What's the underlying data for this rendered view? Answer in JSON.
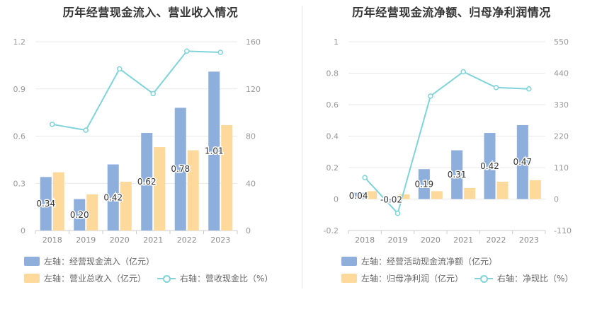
{
  "colors": {
    "bar1": "#8eaedc",
    "bar2": "#fdd99b",
    "line": "#7fd3d9",
    "grid": "#e9e9e9",
    "axis": "#999999"
  },
  "chart_data": [
    {
      "type": "bar",
      "title": "历年经营现金流入、营业收入情况",
      "categories": [
        "2018",
        "2019",
        "2020",
        "2021",
        "2022",
        "2023"
      ],
      "left_ticks": [
        "0",
        "0.3",
        "0.6",
        "0.9",
        "1.2"
      ],
      "right_ticks": [
        "0",
        "40",
        "80",
        "120",
        "160"
      ],
      "left_ylim": [
        0,
        1.2
      ],
      "right_ylim": [
        0,
        160
      ],
      "series": [
        {
          "name": "左轴：经营现金流入（亿元）",
          "axis": "left",
          "kind": "bar",
          "values": [
            0.34,
            0.2,
            0.42,
            0.62,
            0.78,
            1.01
          ],
          "labels": [
            "0.34",
            "0.20",
            "0.42",
            "0.62",
            "0.78",
            "1.01"
          ]
        },
        {
          "name": "左轴：营业总收入（亿元）",
          "axis": "left",
          "kind": "bar",
          "values": [
            0.37,
            0.23,
            0.31,
            0.53,
            0.51,
            0.67
          ]
        },
        {
          "name": "右轴：营收现金比（%）",
          "axis": "right",
          "kind": "line",
          "values": [
            90,
            85,
            137,
            116,
            152,
            151
          ]
        }
      ]
    },
    {
      "type": "bar",
      "title": "历年经营现金流净额、归母净利润情况",
      "categories": [
        "2018",
        "2019",
        "2020",
        "2021",
        "2022",
        "2023"
      ],
      "left_ticks": [
        "-0.2",
        "0",
        "0.2",
        "0.4",
        "0.6",
        "0.8",
        "1"
      ],
      "right_ticks": [
        "-110",
        "0",
        "110",
        "220",
        "330",
        "440",
        "550"
      ],
      "left_ylim": [
        -0.2,
        1
      ],
      "right_ylim": [
        -110,
        550
      ],
      "series": [
        {
          "name": "左轴：经营活动现金流净额（亿元）",
          "axis": "left",
          "kind": "bar",
          "values": [
            0.04,
            -0.02,
            0.19,
            0.31,
            0.42,
            0.47
          ],
          "labels": [
            "0.04",
            "-0.02",
            "0.19",
            "0.31",
            "0.42",
            "0.47"
          ]
        },
        {
          "name": "左轴：归母净利润（亿元）",
          "axis": "left",
          "kind": "bar",
          "values": [
            0.05,
            0.03,
            0.05,
            0.07,
            0.11,
            0.12
          ]
        },
        {
          "name": "右轴：净现比（%）",
          "axis": "right",
          "kind": "line",
          "values": [
            75,
            -50,
            360,
            445,
            390,
            385
          ]
        }
      ]
    }
  ]
}
